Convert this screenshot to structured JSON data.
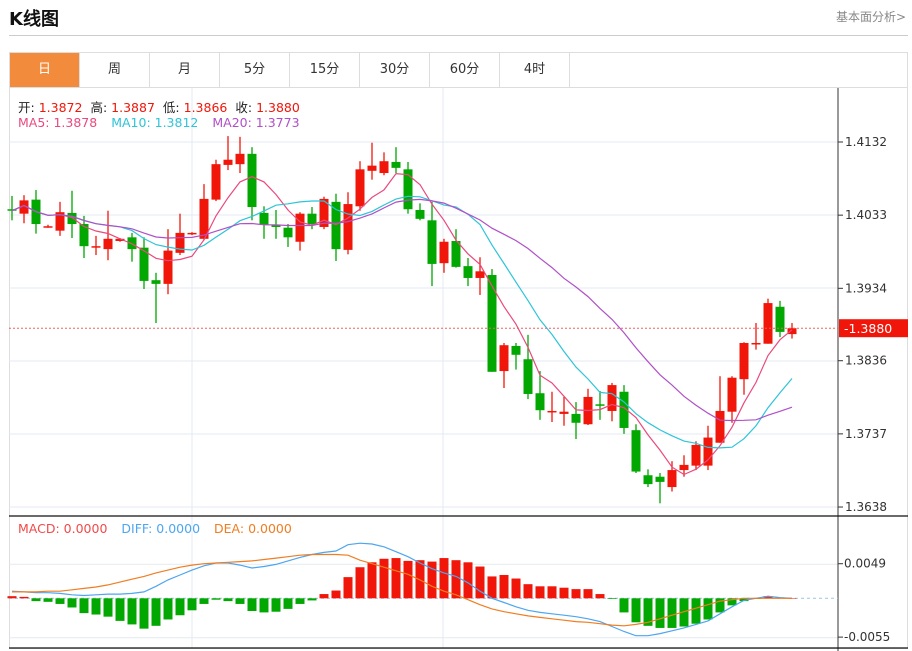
{
  "header": {
    "title": "K线图",
    "more_link": "基本面分析>"
  },
  "tabs": [
    {
      "label": "日",
      "active": true
    },
    {
      "label": "周"
    },
    {
      "label": "月"
    },
    {
      "label": "5分"
    },
    {
      "label": "15分"
    },
    {
      "label": "30分"
    },
    {
      "label": "60分"
    },
    {
      "label": "4时"
    }
  ],
  "ohlc_legend": {
    "open_label": "开:",
    "open": "1.3872",
    "high_label": "高:",
    "high": "1.3887",
    "low_label": "低:",
    "low": "1.3866",
    "close_label": "收:",
    "close": "1.3880"
  },
  "ma_legend": {
    "ma5": "MA5: 1.3878",
    "ma10": "MA10: 1.3812",
    "ma20": "MA20: 1.3773"
  },
  "macd_legend": {
    "macd": "MACD: 0.0000",
    "diff": "DIFF: 0.0000",
    "dea": "DEA: 0.0000"
  },
  "colors": {
    "up": "#f0160a",
    "down": "#02a702",
    "ma5": "#e94a7d",
    "ma10": "#2ec4d9",
    "ma20": "#b050c8",
    "diff": "#4da6f0",
    "dea": "#f07d22",
    "active_tab": "#f28c3c"
  },
  "chart_data": [
    {
      "type": "candlestick",
      "price_axis_ticks": [
        "1.4132",
        "1.4033",
        "1.3934",
        "1.3836",
        "1.3737",
        "1.3638"
      ],
      "current_price": "1.3880",
      "ohlc": [
        [
          1.4041,
          1.4039,
          1.4059,
          1.4026
        ],
        [
          1.4035,
          1.4053,
          1.406,
          1.4022
        ],
        [
          1.4054,
          1.4021,
          1.4067,
          1.4008
        ],
        [
          1.4017,
          1.4018,
          1.402,
          1.4016
        ],
        [
          1.4012,
          1.4037,
          1.4051,
          1.4005
        ],
        [
          1.4036,
          1.4021,
          1.4066,
          1.4002
        ],
        [
          1.4021,
          1.3991,
          1.4032,
          1.3975
        ],
        [
          1.3989,
          1.3991,
          1.4005,
          1.3979
        ],
        [
          1.3987,
          1.4001,
          1.4039,
          1.3972
        ],
        [
          1.3998,
          1.4001,
          1.4002,
          1.3997
        ],
        [
          1.4003,
          1.3987,
          1.4009,
          1.397
        ],
        [
          1.3989,
          1.3944,
          1.4003,
          1.3933
        ],
        [
          1.3945,
          1.394,
          1.3955,
          1.3887
        ],
        [
          1.394,
          1.3985,
          1.4014,
          1.3926
        ],
        [
          1.3982,
          1.4009,
          1.4035,
          1.3979
        ],
        [
          1.4008,
          1.4009,
          1.401,
          1.4006
        ],
        [
          1.4001,
          1.4055,
          1.4075,
          1.3999
        ],
        [
          1.4054,
          1.4102,
          1.4108,
          1.4052
        ],
        [
          1.4101,
          1.4108,
          1.414,
          1.4094
        ],
        [
          1.4102,
          1.4116,
          1.4139,
          1.409
        ],
        [
          1.4116,
          1.4044,
          1.4125,
          1.4026
        ],
        [
          1.4036,
          1.402,
          1.4045,
          1.4001
        ],
        [
          1.402,
          1.4017,
          1.404,
          1.4001
        ],
        [
          1.4016,
          1.4003,
          1.4021,
          1.399
        ],
        [
          1.3997,
          1.4035,
          1.4037,
          1.3985
        ],
        [
          1.4035,
          1.4021,
          1.4044,
          1.4014
        ],
        [
          1.4017,
          1.4055,
          1.4058,
          1.4014
        ],
        [
          1.4051,
          1.3987,
          1.4062,
          1.3971
        ],
        [
          1.3986,
          1.4048,
          1.4064,
          1.398
        ],
        [
          1.4045,
          1.4095,
          1.4106,
          1.4039
        ],
        [
          1.4093,
          1.41,
          1.4131,
          1.4081
        ],
        [
          1.409,
          1.4106,
          1.4118,
          1.4087
        ],
        [
          1.4105,
          1.4097,
          1.4125,
          1.409
        ],
        [
          1.4095,
          1.4041,
          1.4105,
          1.4035
        ],
        [
          1.404,
          1.4028,
          1.4049,
          1.4026
        ],
        [
          1.4026,
          1.3967,
          1.4051,
          1.3937
        ],
        [
          1.3968,
          1.3997,
          1.4001,
          1.3955
        ],
        [
          1.3998,
          1.3963,
          1.4014,
          1.3962
        ],
        [
          1.3964,
          1.3948,
          1.3975,
          1.3937
        ],
        [
          1.3948,
          1.3957,
          1.3976,
          1.3925
        ],
        [
          1.3952,
          1.3821,
          1.396,
          1.3821
        ],
        [
          1.3822,
          1.3857,
          1.386,
          1.3799
        ],
        [
          1.3856,
          1.3844,
          1.386,
          1.3824
        ],
        [
          1.3838,
          1.3791,
          1.3871,
          1.3784
        ],
        [
          1.3792,
          1.3769,
          1.3822,
          1.3756
        ],
        [
          1.3767,
          1.3768,
          1.3794,
          1.3753
        ],
        [
          1.3764,
          1.3767,
          1.3787,
          1.3748
        ],
        [
          1.3764,
          1.3752,
          1.378,
          1.373
        ],
        [
          1.375,
          1.3787,
          1.3798,
          1.3749
        ],
        [
          1.3777,
          1.3775,
          1.3795,
          1.3756
        ],
        [
          1.3768,
          1.3803,
          1.3806,
          1.3754
        ],
        [
          1.3794,
          1.3745,
          1.3803,
          1.3737
        ],
        [
          1.3742,
          1.3686,
          1.375,
          1.3684
        ],
        [
          1.3681,
          1.3669,
          1.3689,
          1.3665
        ],
        [
          1.3679,
          1.3672,
          1.3684,
          1.3643
        ],
        [
          1.3665,
          1.3688,
          1.37,
          1.3659
        ],
        [
          1.3688,
          1.3695,
          1.3708,
          1.3679
        ],
        [
          1.3694,
          1.3722,
          1.3727,
          1.3688
        ],
        [
          1.3694,
          1.3732,
          1.3748,
          1.3688
        ],
        [
          1.3725,
          1.3768,
          1.3815,
          1.3725
        ],
        [
          1.3767,
          1.3813,
          1.3815,
          1.3752
        ],
        [
          1.3811,
          1.386,
          1.3861,
          1.379
        ],
        [
          1.3859,
          1.386,
          1.3887,
          1.3851
        ],
        [
          1.3859,
          1.3914,
          1.392,
          1.3859
        ],
        [
          1.3909,
          1.3875,
          1.3917,
          1.3868
        ],
        [
          1.3872,
          1.388,
          1.3887,
          1.3866
        ]
      ],
      "ma_periods": [
        5,
        10,
        20
      ]
    },
    {
      "type": "macd",
      "axis_ticks": [
        "0.0049",
        "-0.0055"
      ],
      "hist": [
        0.0003,
        0.0002,
        -0.0004,
        -0.0005,
        -0.0008,
        -0.0013,
        -0.0021,
        -0.0023,
        -0.0026,
        -0.0032,
        -0.0037,
        -0.0043,
        -0.0039,
        -0.003,
        -0.0024,
        -0.0017,
        -0.0008,
        -0.0002,
        -0.0004,
        -0.0008,
        -0.0018,
        -0.002,
        -0.0019,
        -0.0015,
        -0.0008,
        -0.0003,
        0.0006,
        0.0011,
        0.003,
        0.0044,
        0.0051,
        0.0056,
        0.0057,
        0.0053,
        0.0054,
        0.0052,
        0.0057,
        0.0054,
        0.0051,
        0.0045,
        0.0031,
        0.0033,
        0.0028,
        0.002,
        0.0017,
        0.0017,
        0.0015,
        0.0013,
        0.0013,
        0.0006,
        -0.0001,
        -0.002,
        -0.0034,
        -0.0039,
        -0.0042,
        -0.0042,
        -0.004,
        -0.0036,
        -0.003,
        -0.002,
        -0.001,
        -0.0004,
        -0.0001,
        0.0003,
        0.0001,
        0.0
      ],
      "diff": [
        0.001,
        0.0009,
        0.0008,
        0.0008,
        0.0007,
        0.0005,
        0.0004,
        0.0005,
        0.0006,
        0.0006,
        0.0007,
        0.0009,
        0.0017,
        0.0026,
        0.0033,
        0.004,
        0.0046,
        0.005,
        0.005,
        0.0047,
        0.0043,
        0.0045,
        0.0048,
        0.0053,
        0.0058,
        0.0062,
        0.0065,
        0.0067,
        0.0076,
        0.0078,
        0.0077,
        0.0073,
        0.0066,
        0.0059,
        0.005,
        0.0042,
        0.0036,
        0.0031,
        0.0022,
        0.001,
        0.0,
        -0.0006,
        -0.0012,
        -0.0017,
        -0.002,
        -0.0022,
        -0.0024,
        -0.0026,
        -0.0029,
        -0.0033,
        -0.004,
        -0.0047,
        -0.0053,
        -0.0053,
        -0.005,
        -0.0046,
        -0.0042,
        -0.0037,
        -0.0032,
        -0.0022,
        -0.0012,
        -0.0003,
        0.0,
        0.0003,
        0.0001,
        0.0
      ],
      "dea": [
        0.0009,
        0.0009,
        0.0009,
        0.001,
        0.001,
        0.0012,
        0.0014,
        0.0016,
        0.0019,
        0.0023,
        0.0027,
        0.0031,
        0.0036,
        0.004,
        0.0044,
        0.0047,
        0.0049,
        0.005,
        0.0051,
        0.0052,
        0.0053,
        0.0055,
        0.0057,
        0.0059,
        0.0061,
        0.0062,
        0.0062,
        0.0062,
        0.0061,
        0.0054,
        0.0049,
        0.0044,
        0.0039,
        0.0034,
        0.0026,
        0.0017,
        0.001,
        0.0005,
        -0.0002,
        -0.0009,
        -0.0015,
        -0.0019,
        -0.0022,
        -0.0025,
        -0.0027,
        -0.0029,
        -0.0031,
        -0.0033,
        -0.0034,
        -0.0036,
        -0.0038,
        -0.0039,
        -0.0037,
        -0.0034,
        -0.0029,
        -0.0024,
        -0.0019,
        -0.0014,
        -0.0009,
        -0.0004,
        -0.0002,
        0,
        0,
        0,
        0,
        0
      ]
    }
  ]
}
